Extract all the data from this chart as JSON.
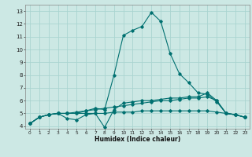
{
  "xlabel": "Humidex (Indice chaleur)",
  "ylabel": "",
  "bg_color": "#cce8e4",
  "grid_color": "#aad4d0",
  "line_color": "#007070",
  "xlim": [
    -0.5,
    23.5
  ],
  "ylim": [
    3.8,
    13.5
  ],
  "xticks": [
    0,
    1,
    2,
    3,
    4,
    5,
    6,
    7,
    8,
    9,
    10,
    11,
    12,
    13,
    14,
    15,
    16,
    17,
    18,
    19,
    20,
    21,
    22,
    23
  ],
  "yticks": [
    4,
    5,
    6,
    7,
    8,
    9,
    10,
    11,
    12,
    13
  ],
  "series": [
    [
      4.2,
      4.7,
      4.9,
      5.0,
      5.0,
      5.0,
      5.2,
      5.4,
      5.3,
      8.0,
      11.1,
      11.5,
      11.8,
      12.9,
      12.2,
      9.7,
      8.1,
      7.4,
      6.6,
      6.5,
      5.9,
      5.0,
      4.9,
      4.7
    ],
    [
      4.2,
      4.7,
      4.9,
      5.0,
      4.6,
      4.5,
      4.9,
      5.0,
      3.9,
      5.3,
      5.8,
      5.9,
      6.0,
      6.0,
      6.1,
      6.2,
      6.2,
      6.3,
      6.3,
      6.6,
      6.0,
      5.0,
      4.9,
      4.7
    ],
    [
      4.2,
      4.7,
      4.9,
      5.0,
      5.0,
      5.1,
      5.2,
      5.3,
      5.4,
      5.5,
      5.6,
      5.7,
      5.8,
      5.9,
      6.0,
      6.0,
      6.1,
      6.2,
      6.2,
      6.3,
      6.0,
      5.0,
      4.9,
      4.7
    ],
    [
      4.2,
      4.7,
      4.9,
      5.0,
      5.0,
      5.0,
      5.0,
      5.0,
      5.0,
      5.1,
      5.1,
      5.1,
      5.2,
      5.2,
      5.2,
      5.2,
      5.2,
      5.2,
      5.2,
      5.2,
      5.1,
      5.0,
      4.9,
      4.7
    ]
  ]
}
